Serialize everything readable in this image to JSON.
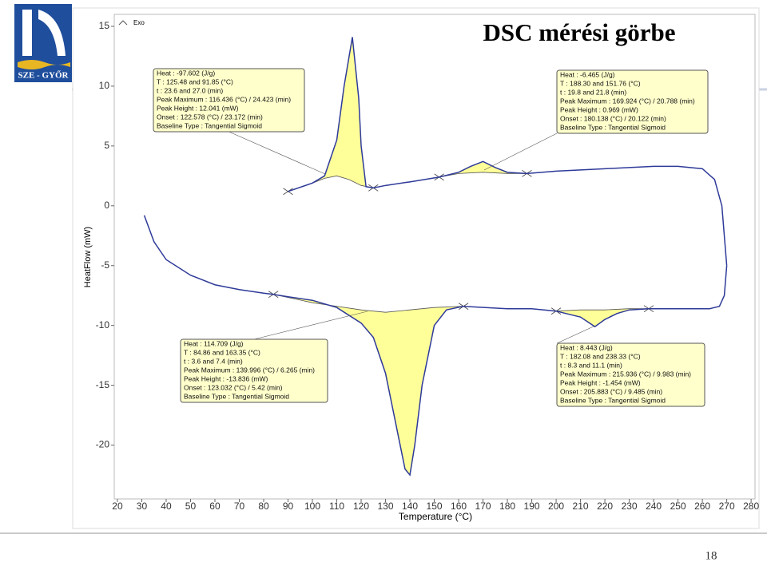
{
  "header": {
    "title": "DSC mérési görbe",
    "logo_text": "SZE - GYŐR"
  },
  "page_number": "18",
  "chart_data": {
    "type": "line",
    "x_label": "Temperature (°C)",
    "y_label": "HeatFlow (mW)",
    "exo_label": "Exo",
    "xlim": [
      18.7,
      281.6
    ],
    "ylim": [
      -24.5,
      16
    ],
    "xticks": [
      20,
      30,
      40,
      50,
      60,
      70,
      80,
      90,
      100,
      110,
      120,
      130,
      140,
      150,
      160,
      170,
      180,
      190,
      200,
      210,
      220,
      230,
      240,
      250,
      260,
      270,
      280
    ],
    "yticks": [
      -20,
      -15,
      -10,
      -5,
      0,
      5,
      10,
      15
    ],
    "fill_color": "#ffff99",
    "series": [
      {
        "color": "#2e3a99",
        "x": [
          90,
          100,
          105,
          110,
          113,
          116.4,
          119,
          120,
          122,
          125,
          130,
          140,
          152,
          160,
          165,
          170,
          175,
          180,
          188,
          200,
          220,
          240,
          250,
          260,
          265,
          268,
          270
        ],
        "values": [
          1.2,
          1.9,
          2.5,
          5.5,
          10,
          14.1,
          9,
          5,
          1.6,
          1.5,
          1.7,
          2.0,
          2.4,
          2.8,
          3.3,
          3.7,
          3.2,
          2.8,
          2.7,
          2.9,
          3.1,
          3.3,
          3.3,
          3.1,
          2.2,
          0,
          -5
        ],
        "baselines": [
          {
            "x": [
              90,
              100,
              105,
              110,
              115,
              120,
              125
            ],
            "values": [
              1.2,
              1.9,
              2.3,
              2.5,
              2.2,
              1.7,
              1.5
            ]
          },
          {
            "x": [
              152,
              160,
              170,
              180,
              188
            ],
            "values": [
              2.4,
              2.7,
              2.8,
              2.7,
              2.7
            ]
          }
        ]
      },
      {
        "color": "#2e3a99",
        "x": [
          270,
          269,
          267,
          263,
          250,
          238,
          230,
          225,
          220,
          215.9,
          210,
          200,
          190,
          180,
          162,
          155,
          150,
          145,
          142,
          140,
          138,
          135,
          130,
          125,
          120,
          110,
          100,
          90,
          84,
          80,
          70,
          60,
          50,
          40,
          35,
          31
        ],
        "values": [
          -5,
          -7.5,
          -8.4,
          -8.6,
          -8.6,
          -8.6,
          -8.7,
          -9.0,
          -9.5,
          -10.1,
          -9.3,
          -8.8,
          -8.6,
          -8.6,
          -8.4,
          -8.7,
          -10,
          -15,
          -20,
          -22.5,
          -22,
          -19,
          -14,
          -11,
          -9.8,
          -8.5,
          -7.9,
          -7.6,
          -7.4,
          -7.3,
          -7.0,
          -6.6,
          -5.8,
          -4.5,
          -3,
          -0.8
        ],
        "baselines": [
          {
            "x": [
              84,
              100,
              120,
              130,
              140,
              150,
              162
            ],
            "values": [
              -7.4,
              -8.1,
              -8.7,
              -8.9,
              -8.7,
              -8.5,
              -8.4
            ]
          },
          {
            "x": [
              200,
              210,
              220,
              230,
              238
            ],
            "values": [
              -8.8,
              -8.7,
              -8.7,
              -8.6,
              -8.6
            ]
          }
        ]
      }
    ],
    "annotations": [
      {
        "lines": [
          "Heat :  -97.602 (J/g)",
          "T : 125.48 and 91.85 (°C)",
          "t : 23.6 and 27.0 (min)",
          "Peak Maximum :  116.436 (°C) / 24.423 (min)",
          "Peak Height :  12.041 (mW)",
          "Onset :  122.578 (°C) / 23.172 (min)",
          "Baseline Type :  Tangential Sigmoid"
        ]
      },
      {
        "lines": [
          "Heat :  -6.465 (J/g)",
          "T : 188.30 and 151.76 (°C)",
          "t : 19.8 and 21.8 (min)",
          "Peak Maximum :  169.924 (°C) / 20.788 (min)",
          "Peak Height :  0.969 (mW)",
          "Onset :  180.138 (°C) / 20.122 (min)",
          "Baseline Type :  Tangential Sigmoid"
        ]
      },
      {
        "lines": [
          "Heat :  114.709 (J/g)",
          "T : 84.86 and 163.35 (°C)",
          "t : 3.6 and 7.4 (min)",
          "Peak Maximum :  139.996 (°C) / 6.265 (min)",
          "Peak Height :  -13.836 (mW)",
          "Onset :  123.032 (°C) / 5.42 (min)",
          "Baseline Type :  Tangential Sigmoid"
        ]
      },
      {
        "lines": [
          "Heat :  8.443 (J/g)",
          "T : 182.08 and 238.33 (°C)",
          "t : 8.3 and 11.1 (min)",
          "Peak Maximum :  215.936 (°C) / 9.983 (min)",
          "Peak Height :  -1.454 (mW)",
          "Onset :  205.883 (°C) / 9.485 (min)",
          "Baseline Type :  Tangential Sigmoid"
        ]
      }
    ]
  }
}
